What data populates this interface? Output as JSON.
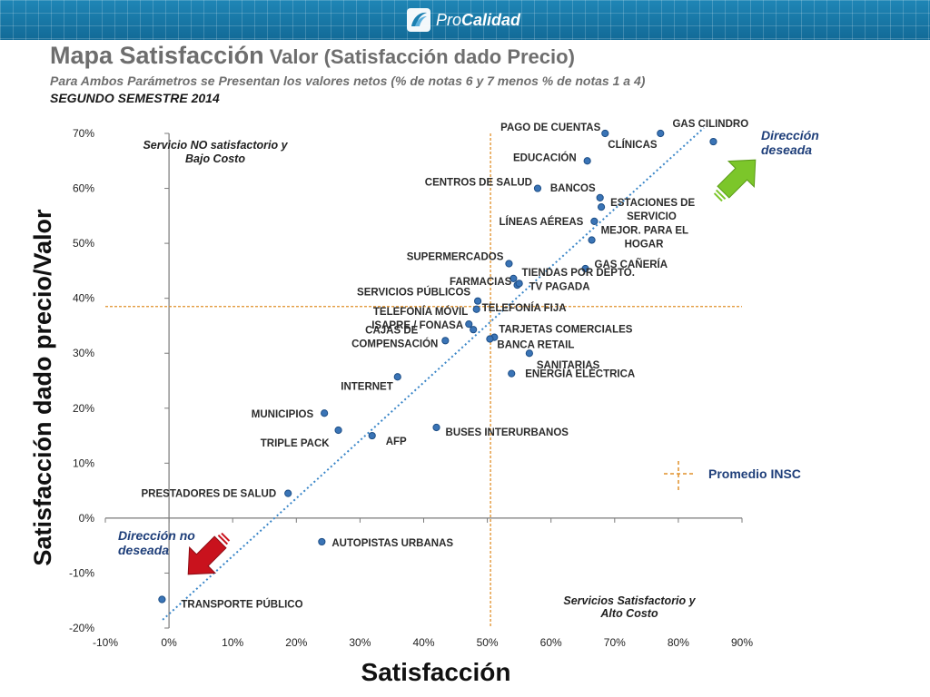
{
  "header": {
    "logo_text_a": "Pro",
    "logo_text_b": "Calidad",
    "title_main": "Mapa Satisfacción",
    "title_rest": " Valor (Satisfacción dado Precio)",
    "subtitle": "Para Ambos Parámetros se Presentan los valores netos (% de notas 6 y 7 menos % de notas 1 a 4)",
    "semester": "SEGUNDO SEMESTRE 2014"
  },
  "colors": {
    "band": "#1a7fb0",
    "point": "#3a74b6",
    "trend": "#3a86c8",
    "average": "#e0902a",
    "arrow_up": "#7cc62a",
    "arrow_down": "#c9121d"
  },
  "annotations": {
    "top_left_1": "Servicio NO satisfactorio    y",
    "top_left_2": "Bajo Costo",
    "bottom_right_1": "Servicios Satisfactorio    y",
    "bottom_right_2": "Alto Costo",
    "dir_good_1": "Dirección",
    "dir_good_2": "deseada",
    "dir_bad_1": "Dirección no",
    "dir_bad_2": "deseada",
    "legend": "Promedio INSC"
  },
  "chart_data": {
    "type": "scatter",
    "title": "",
    "xlabel": "Satisfacción",
    "ylabel": "Satisfacción dado precio/Valor",
    "xlim": [
      -10,
      90
    ],
    "ylim": [
      -20,
      70
    ],
    "xticks": [
      "-10%",
      "0%",
      "10%",
      "20%",
      "30%",
      "40%",
      "50%",
      "60%",
      "70%",
      "80%",
      "90%"
    ],
    "yticks": [
      "-20%",
      "-10%",
      "0%",
      "10%",
      "20%",
      "30%",
      "40%",
      "50%",
      "60%",
      "70%"
    ],
    "average": {
      "x": 50.5,
      "y": 38.5
    },
    "trendline": {
      "from": [
        -1,
        -18.5
      ],
      "to": [
        84,
        71
      ]
    },
    "points": [
      {
        "label": "PAGO DE CUENTAS",
        "x": 68.5,
        "y": 70.0
      },
      {
        "label": "GAS CILINDRO",
        "x": 85.5,
        "y": 68.5
      },
      {
        "label": "CLÍNICAS",
        "x": 77.2,
        "y": 70.0
      },
      {
        "label": "EDUCACIÓN",
        "x": 65.7,
        "y": 65.0
      },
      {
        "label": "CENTROS DE SALUD",
        "x": 57.9,
        "y": 60.0
      },
      {
        "label": "BANCOS",
        "x": 67.7,
        "y": 58.3
      },
      {
        "label": "ESTACIONES DE SERVICIO",
        "x": 67.9,
        "y": 56.6
      },
      {
        "label": "LÍNEAS AÉREAS",
        "x": 66.8,
        "y": 54.0
      },
      {
        "label": "MEJOR. PARA EL HOGAR",
        "x": 66.4,
        "y": 50.6
      },
      {
        "label": "SUPERMERCADOS",
        "x": 53.4,
        "y": 46.3
      },
      {
        "label": "GAS CAÑERÍA",
        "x": 65.4,
        "y": 45.4
      },
      {
        "label": "TIENDAS POR DEPTO.",
        "x": 54.7,
        "y": 42.4
      },
      {
        "label": "FARMACIAS",
        "x": 54.1,
        "y": 43.6
      },
      {
        "label": "TV PAGADA",
        "x": 55.0,
        "y": 42.7
      },
      {
        "label": "SERVICIOS PÚBLICOS",
        "x": 48.5,
        "y": 39.5
      },
      {
        "label": "TELEFONÍA FIJA",
        "x": 48.3,
        "y": 38.0
      },
      {
        "label": "TELEFONÍA MÓVIL",
        "x": 47.1,
        "y": 35.3
      },
      {
        "label": "ISAPRE / FONASA",
        "x": 47.8,
        "y": 34.3
      },
      {
        "label": "TARJETAS COMERCIALES",
        "x": 51.1,
        "y": 32.9
      },
      {
        "label": "BANCA RETAIL",
        "x": 50.4,
        "y": 32.6
      },
      {
        "label": "CAJAS DE COMPENSACIÓN",
        "x": 43.4,
        "y": 32.3
      },
      {
        "label": "SANITARIAS",
        "x": 56.6,
        "y": 30.0
      },
      {
        "label": "ENERGÍA ELÉCTRICA",
        "x": 53.8,
        "y": 26.3
      },
      {
        "label": "INTERNET",
        "x": 35.9,
        "y": 25.7
      },
      {
        "label": "MUNICIPIOS",
        "x": 24.4,
        "y": 19.1
      },
      {
        "label": "TRIPLE PACK",
        "x": 26.6,
        "y": 16.0
      },
      {
        "label": "AFP",
        "x": 31.9,
        "y": 15.0
      },
      {
        "label": "BUSES INTERURBANOS",
        "x": 42.0,
        "y": 16.5
      },
      {
        "label": "PRESTADORES DE SALUD",
        "x": 18.7,
        "y": 4.5
      },
      {
        "label": "AUTOPISTAS URBANAS",
        "x": 24.0,
        "y": -4.3
      },
      {
        "label": "TRANSPORTE PÚBLICO",
        "x": -1.1,
        "y": -14.8
      }
    ]
  }
}
